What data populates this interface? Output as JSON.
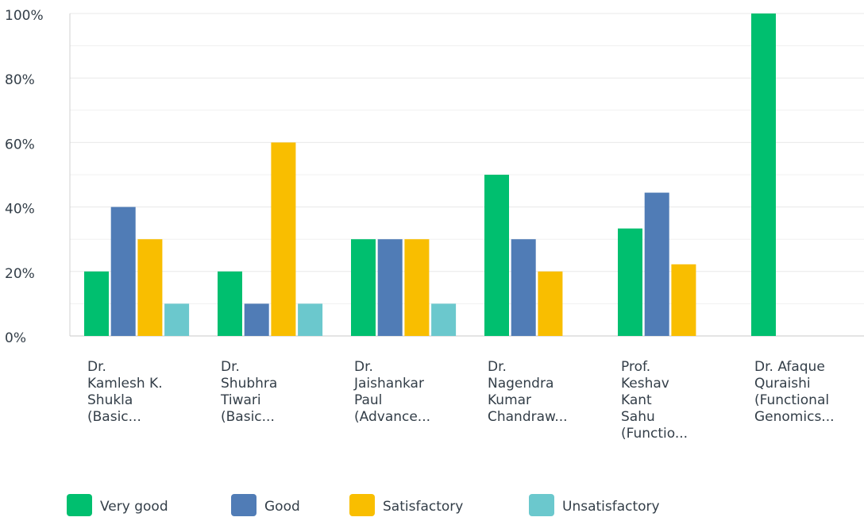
{
  "chart_data": {
    "type": "bar",
    "categories": [
      [
        "Dr.",
        "Kamlesh K.",
        "Shukla",
        "(Basic..."
      ],
      [
        "Dr.",
        "Shubhra",
        "Tiwari",
        "(Basic..."
      ],
      [
        "Dr.",
        "Jaishankar",
        "Paul",
        "(Advance..."
      ],
      [
        "Dr.",
        "Nagendra",
        "Kumar",
        "Chandraw..."
      ],
      [
        "Prof.",
        "Keshav",
        "Kant",
        "Sahu",
        "(Functio..."
      ],
      [
        "Dr. Afaque",
        "Quraishi",
        "(Functional",
        "Genomics..."
      ]
    ],
    "series": [
      {
        "name": "Very good",
        "color": "#00bf6f",
        "values": [
          20,
          20,
          30,
          50,
          33.33,
          100
        ]
      },
      {
        "name": "Good",
        "color": "#507cb6",
        "values": [
          40,
          10,
          30,
          30,
          44.44,
          0
        ]
      },
      {
        "name": "Satisfactory",
        "color": "#f9be00",
        "values": [
          30,
          60,
          30,
          20,
          22.22,
          0
        ]
      },
      {
        "name": "Unsatisfactory",
        "color": "#6bc8cd",
        "values": [
          10,
          10,
          10,
          0,
          0,
          0
        ]
      }
    ],
    "ylim": [
      0,
      100
    ],
    "yticks": [
      {
        "value": 0,
        "label": "0%"
      },
      {
        "value": 20,
        "label": "20%"
      },
      {
        "value": 40,
        "label": "40%"
      },
      {
        "value": 60,
        "label": "60%"
      },
      {
        "value": 80,
        "label": "80%"
      },
      {
        "value": 100,
        "label": "100%"
      }
    ],
    "minor_yticks": [
      10,
      30,
      50,
      70,
      90
    ],
    "grid": true,
    "legend": "bottom"
  }
}
